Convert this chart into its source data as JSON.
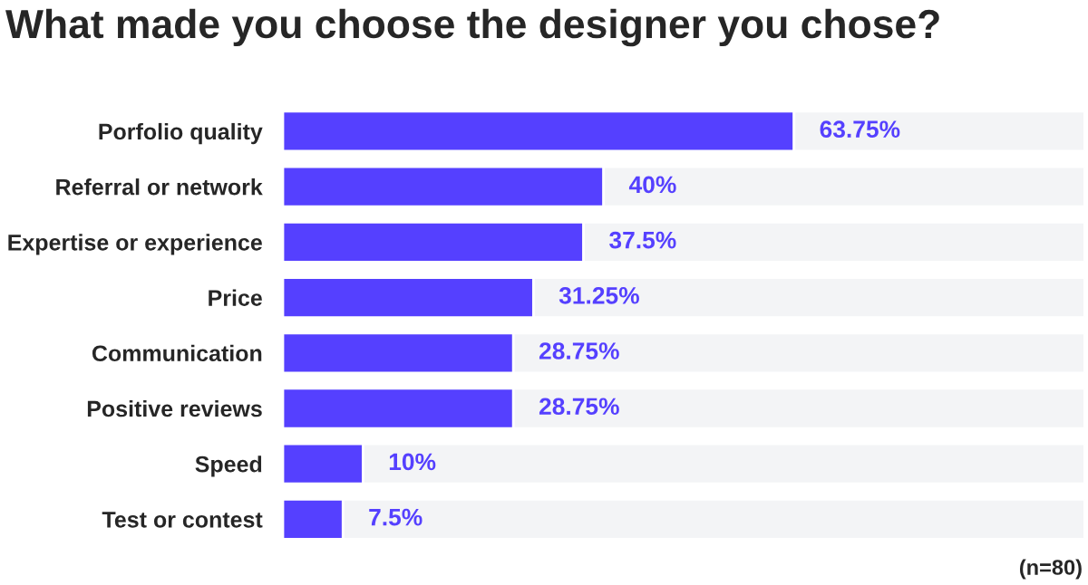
{
  "chart_data": {
    "type": "bar",
    "orientation": "horizontal",
    "stacked": true,
    "title": "What made you choose the designer you chose?",
    "categories": [
      "Porfolio quality",
      "Referral or network",
      "Expertise or experience",
      "Price",
      "Communication",
      "Positive reviews",
      "Speed",
      "Test or contest"
    ],
    "series": [
      {
        "color": "#5540ff",
        "values": [
          63.75,
          40,
          37.5,
          31.25,
          28.75,
          28.75,
          10,
          7.5
        ],
        "value_labels": [
          "63.75%",
          "40%",
          "37.5%",
          "31.25%",
          "28.75%",
          "28.75%",
          "10%",
          "7.5%"
        ]
      },
      {
        "color": "#f3f4f6",
        "values": [
          36.25,
          60,
          62.5,
          68.75,
          71.25,
          71.25,
          90,
          92.5
        ]
      }
    ],
    "xlim": [
      0,
      100
    ],
    "tick_labels": "y",
    "grid": false,
    "legend": false,
    "annotations": [
      "(n=80)"
    ]
  }
}
